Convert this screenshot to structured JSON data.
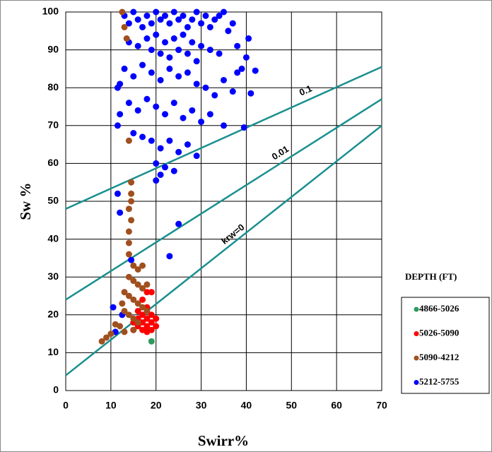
{
  "chart_data": {
    "type": "scatter",
    "xlabel": "Swirr%",
    "ylabel": "Sw %",
    "xlim": [
      0,
      70
    ],
    "ylim": [
      0,
      100
    ],
    "xticks": [
      0,
      10,
      20,
      30,
      40,
      50,
      60,
      70
    ],
    "yticks": [
      0,
      10,
      20,
      30,
      40,
      50,
      60,
      70,
      80,
      90,
      100
    ],
    "grid": true,
    "legend_title": "DEPTH (FT)",
    "series": [
      {
        "name": "4866-5026",
        "color": "#2e9a5e",
        "x": [
          19
        ],
        "y": [
          13
        ]
      },
      {
        "name": "5026-5090",
        "color": "#ff0000",
        "x": [
          15,
          16,
          17,
          18,
          19,
          16,
          17,
          18,
          19,
          20,
          18,
          17,
          18,
          19,
          16,
          17,
          19,
          20,
          15,
          18
        ],
        "y": [
          16,
          17,
          18,
          19,
          20,
          19,
          16,
          17,
          18,
          17,
          22,
          24,
          26,
          26,
          21,
          20,
          16,
          19,
          18,
          15.5
        ]
      },
      {
        "name": "5090-4212",
        "color": "#a0501e",
        "x": [
          12.5,
          13,
          13.5,
          14,
          14.5,
          14.5,
          14.5,
          14,
          14.5,
          14,
          14,
          14,
          15,
          16,
          17,
          14,
          15,
          16,
          17,
          18,
          13,
          14,
          15,
          16,
          17,
          13,
          14,
          15,
          16,
          12,
          11,
          10,
          9,
          8,
          13,
          15,
          18,
          12.5
        ],
        "y": [
          100,
          96,
          93,
          66,
          55,
          52,
          50,
          48,
          45,
          42,
          39,
          36,
          33,
          32,
          33,
          30,
          29,
          28,
          27,
          28,
          26,
          25,
          24,
          23,
          22,
          21,
          20,
          19,
          18,
          17,
          17.5,
          15,
          14,
          13,
          15.5,
          16,
          21,
          23
        ]
      },
      {
        "name": "5212-5755",
        "color": "#0000ff",
        "x": [
          13,
          14,
          15,
          16,
          17,
          18,
          19,
          20,
          21,
          22,
          23,
          24,
          25,
          26,
          27,
          28,
          29,
          30,
          31,
          32,
          33,
          34,
          35,
          36,
          37,
          38,
          40,
          39,
          14,
          16,
          18,
          20,
          22,
          24,
          26,
          28,
          30,
          32,
          34,
          19,
          21,
          23,
          25,
          27,
          29,
          13,
          15,
          17,
          19,
          21,
          23,
          25,
          27,
          29,
          31,
          33,
          35,
          37,
          12,
          11.5,
          14,
          16,
          18,
          20,
          22,
          24,
          26,
          28,
          30,
          32,
          35,
          12,
          11.5,
          15,
          17,
          19,
          21,
          23,
          25,
          27,
          29,
          20,
          21,
          22,
          24,
          20,
          11.5,
          12,
          25,
          23,
          14.5,
          10.5,
          11,
          12.5,
          39.5,
          41,
          42,
          40.5,
          38
        ],
        "y": [
          99,
          97,
          100,
          98,
          96,
          99,
          97,
          100,
          98,
          99,
          97,
          100,
          98,
          99,
          96,
          98,
          100,
          97,
          99,
          96,
          98,
          99,
          100,
          95,
          97,
          91,
          88,
          85,
          92,
          91,
          93,
          94,
          92,
          93,
          94,
          92,
          91,
          90,
          89,
          90,
          89,
          88,
          90,
          89,
          87,
          85,
          83,
          86,
          84,
          82,
          85,
          83,
          84,
          81,
          80,
          78,
          82,
          79,
          81,
          80,
          76,
          74,
          77,
          75,
          73,
          76,
          72,
          74,
          71,
          73,
          70,
          73,
          70,
          68,
          67,
          66,
          64,
          66,
          63,
          65,
          62,
          60,
          57,
          59,
          58,
          55.5,
          52,
          47,
          44,
          35.5,
          34.5,
          22,
          15.5,
          20,
          69.5,
          78.5,
          84.5,
          93,
          84
        ]
      }
    ],
    "curves": [
      {
        "label": "0.1",
        "color": "#1a8f8f",
        "x": [
          0,
          70
        ],
        "y": [
          48,
          85.5
        ]
      },
      {
        "label": "0.01",
        "color": "#1a8f8f",
        "x": [
          0,
          70
        ],
        "y": [
          24,
          77
        ]
      },
      {
        "label": "krw=0",
        "color": "#1a8f8f",
        "x": [
          0,
          70
        ],
        "y": [
          4,
          70
        ]
      }
    ]
  }
}
